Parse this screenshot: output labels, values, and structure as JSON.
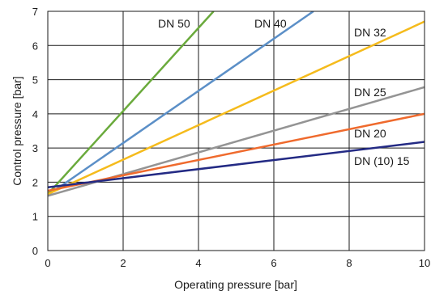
{
  "chart_data": {
    "type": "line",
    "title": "",
    "xlabel": "Operating pressure [bar]",
    "ylabel": "Control pressure [bar]",
    "xlim": [
      0,
      10
    ],
    "ylim": [
      0,
      7
    ],
    "xticks": [
      0,
      2,
      4,
      6,
      8,
      10
    ],
    "yticks": [
      0,
      1,
      2,
      3,
      4,
      5,
      6,
      7
    ],
    "grid": true,
    "legend": "none",
    "series": [
      {
        "name": "DN 50",
        "color": "#6aaa3c",
        "x": [
          0,
          4.4
        ],
        "y": [
          1.65,
          7.0
        ]
      },
      {
        "name": "DN 40",
        "color": "#5b8fc7",
        "x": [
          0,
          7.05
        ],
        "y": [
          1.62,
          7.0
        ]
      },
      {
        "name": "DN 32",
        "color": "#f5bb1c",
        "x": [
          0,
          10
        ],
        "y": [
          1.65,
          6.7
        ]
      },
      {
        "name": "DN 25",
        "color": "#949494",
        "x": [
          0,
          10
        ],
        "y": [
          1.6,
          4.78
        ]
      },
      {
        "name": "DN 20",
        "color": "#ef6a2d",
        "x": [
          0,
          10
        ],
        "y": [
          1.75,
          4.0
        ]
      },
      {
        "name": "DN (10) 15",
        "color": "#232a84",
        "x": [
          0,
          10
        ],
        "y": [
          1.85,
          3.18
        ]
      }
    ]
  }
}
